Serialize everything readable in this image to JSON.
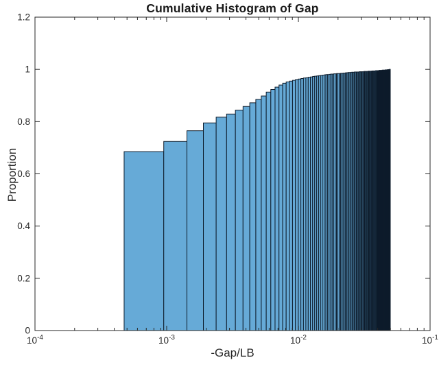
{
  "chart_data": {
    "type": "bar",
    "subtype": "cumulative-histogram",
    "title": "Cumulative Histogram of Gap",
    "xlabel": "-Gap/LB",
    "ylabel": "Proportion",
    "x_scale": "log",
    "xlim": [
      0.0001,
      0.1
    ],
    "ylim": [
      0,
      1.2
    ],
    "grid": false,
    "legend": false,
    "x_ticks": [
      {
        "value": 0.0001,
        "base": "10",
        "exp": "-4"
      },
      {
        "value": 0.001,
        "base": "10",
        "exp": "-3"
      },
      {
        "value": 0.01,
        "base": "10",
        "exp": "-2"
      },
      {
        "value": 0.1,
        "base": "10",
        "exp": "-1"
      }
    ],
    "y_ticks": [
      {
        "value": 0,
        "label": "0"
      },
      {
        "value": 0.2,
        "label": "0.2"
      },
      {
        "value": 0.4,
        "label": "0.4"
      },
      {
        "value": 0.6,
        "label": "0.6"
      },
      {
        "value": 0.8,
        "label": "0.8"
      },
      {
        "value": 1,
        "label": "1"
      },
      {
        "value": 1.2,
        "label": "1.2"
      }
    ],
    "bin_start": 0.000475,
    "bin_width": 0.000475,
    "cumulative_proportions": [
      0.685,
      0.724,
      0.765,
      0.795,
      0.817,
      0.829,
      0.844,
      0.858,
      0.872,
      0.885,
      0.898,
      0.913,
      0.923,
      0.932,
      0.94,
      0.947,
      0.952,
      0.955,
      0.958,
      0.961,
      0.963,
      0.965,
      0.967,
      0.968,
      0.97,
      0.971,
      0.973,
      0.974,
      0.975,
      0.976,
      0.977,
      0.978,
      0.979,
      0.98,
      0.98,
      0.981,
      0.982,
      0.982,
      0.983,
      0.983,
      0.984,
      0.984,
      0.984,
      0.985,
      0.985,
      0.986,
      0.986,
      0.987,
      0.987,
      0.988,
      0.988,
      0.988,
      0.989,
      0.989,
      0.989,
      0.99,
      0.99,
      0.99,
      0.99,
      0.99,
      0.991,
      0.991,
      0.991,
      0.991,
      0.991,
      0.992,
      0.992,
      0.992,
      0.992,
      0.992,
      0.993,
      0.993,
      0.993,
      0.993,
      0.993,
      0.994,
      0.994,
      0.994,
      0.994,
      0.994,
      0.995,
      0.995,
      0.995,
      0.995,
      0.995,
      0.996,
      0.996,
      0.996,
      0.996,
      0.996,
      0.997,
      0.997,
      0.997,
      0.997,
      0.997,
      0.998,
      0.998,
      0.998,
      0.998,
      0.999,
      0.999,
      0.999,
      1.0,
      1.0
    ],
    "colors": {
      "bar_face": "#66aad7",
      "bar_edge": "#0d1b2a",
      "axis": "#262626",
      "tick_text": "#262626",
      "title_text": "#1a1a1a"
    }
  }
}
